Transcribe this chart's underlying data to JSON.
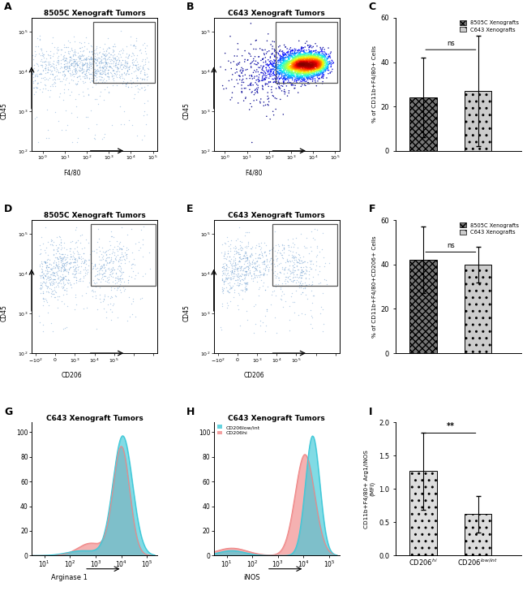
{
  "title_A": "8505C Xenograft Tumors",
  "title_B": "C643 Xenograft Tumors",
  "title_D": "8505C Xenograft Tumors",
  "title_E": "C643 Xenograft Tumors",
  "title_G": "C643 Xenograft Tumors",
  "title_H": "C643 Xenograft Tumors",
  "xlabel_AB": "F4/80",
  "ylabel_ABDE": "CD45",
  "xlabel_DE": "CD206",
  "xlabel_G": "Arginase 1",
  "xlabel_H": "iNOS",
  "bar_C_values": [
    24,
    27
  ],
  "bar_C_errors": [
    18,
    25
  ],
  "bar_C_ylim": [
    0,
    60
  ],
  "bar_C_yticks": [
    0,
    20,
    40,
    60
  ],
  "bar_C_ylabel": "% of CD11b+F4/80+ Cells",
  "bar_C_ns_text": "ns",
  "bar_F_values": [
    42,
    40
  ],
  "bar_F_errors": [
    15,
    8
  ],
  "bar_F_ylim": [
    0,
    60
  ],
  "bar_F_yticks": [
    0,
    20,
    40,
    60
  ],
  "bar_F_ylabel": "% of CD11b+F4/80+CD206+ Cells",
  "bar_F_ns_text": "ns",
  "bar_I_values": [
    1.27,
    0.62
  ],
  "bar_I_errors": [
    0.58,
    0.28
  ],
  "bar_I_ylim": [
    0.0,
    2.0
  ],
  "bar_I_yticks": [
    0.0,
    0.5,
    1.0,
    1.5,
    2.0
  ],
  "bar_I_ylabel": "CD11b+F4/80+ Arg1/iNOS\n(MFI)",
  "bar_I_sig_text": "**",
  "bar_I_categories": [
    "CD206hi",
    "CD206low/int"
  ],
  "legend_CF_label1": "8505C Xenografts",
  "legend_CF_label2": "C643 Xenografts",
  "legend_H_label1": "CD206low/int",
  "legend_H_label2": "CD206hi",
  "color_cyan": "#3ec8d8",
  "color_salmon": "#f08888",
  "bg_color": "#ffffff"
}
